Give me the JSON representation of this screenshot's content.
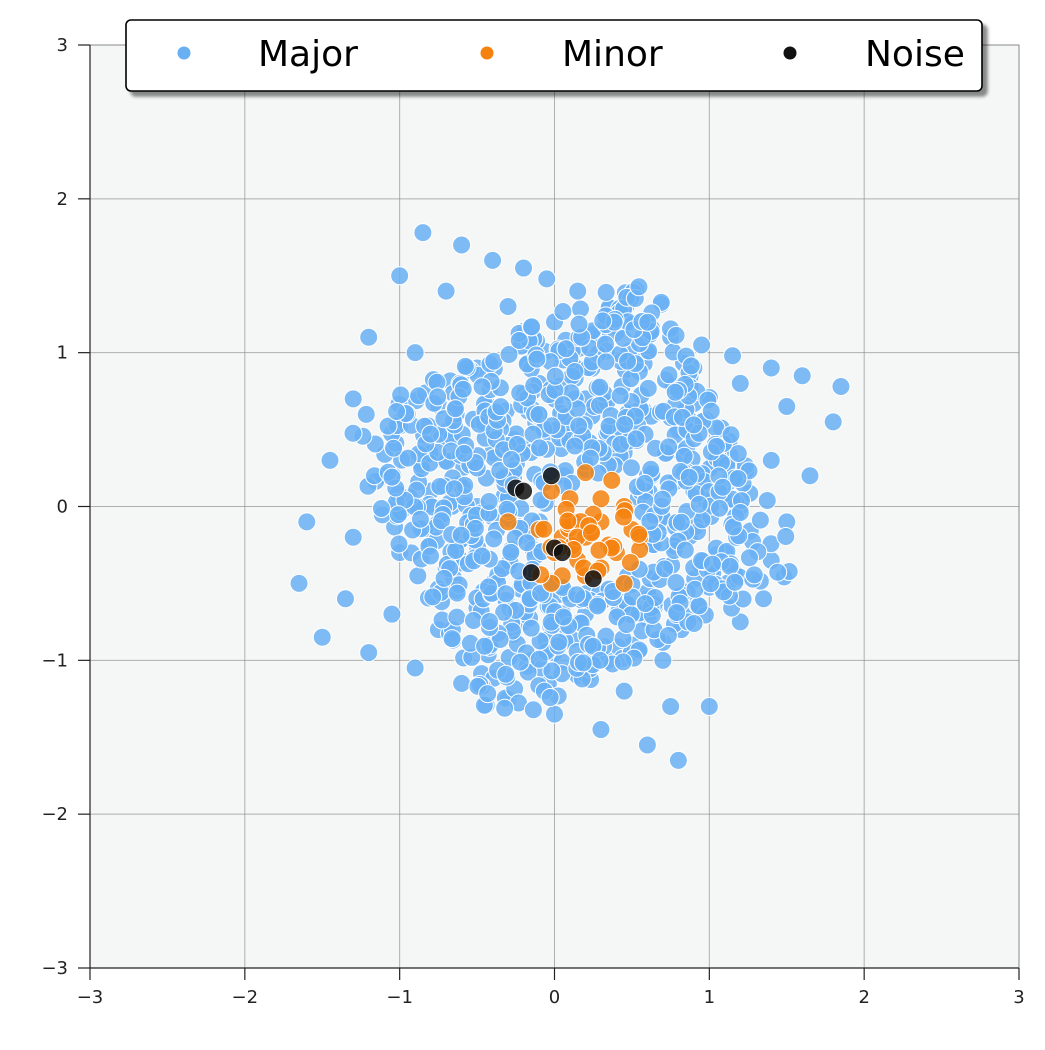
{
  "chart_data": {
    "type": "scatter",
    "title": "",
    "xlabel": "",
    "ylabel": "",
    "xlim": [
      -3,
      3
    ],
    "ylim": [
      -3,
      3
    ],
    "xticks": [
      -3,
      -2,
      -1,
      0,
      1,
      2,
      3
    ],
    "yticks": [
      -3,
      -2,
      -1,
      0,
      1,
      2,
      3
    ],
    "xtick_labels": [
      "−3",
      "−2",
      "−1",
      "0",
      "1",
      "2",
      "3"
    ],
    "ytick_labels": [
      "−3",
      "−2",
      "−1",
      "0",
      "1",
      "2",
      "3"
    ],
    "grid": true,
    "legend_position": "top-center",
    "background": "#f5f7f6",
    "series": [
      {
        "name": "Major",
        "color": "#69b0f3",
        "distribution": "uniform square rotated ~28°, half-width ~1.1 around origin",
        "points": [
          [
            -0.85,
            1.78
          ],
          [
            -0.6,
            1.7
          ],
          [
            -0.4,
            1.6
          ],
          [
            -0.2,
            1.55
          ],
          [
            -0.05,
            1.48
          ],
          [
            0.15,
            1.4
          ],
          [
            0.35,
            1.3
          ],
          [
            0.55,
            1.2
          ],
          [
            0.75,
            1.1
          ],
          [
            0.95,
            1.05
          ],
          [
            1.15,
            0.98
          ],
          [
            1.4,
            0.9
          ],
          [
            1.6,
            0.85
          ],
          [
            1.85,
            0.78
          ],
          [
            -1.0,
            1.5
          ],
          [
            -0.7,
            1.4
          ],
          [
            -0.3,
            1.3
          ],
          [
            0.0,
            1.2
          ],
          [
            0.3,
            1.1
          ],
          [
            0.6,
            1.0
          ],
          [
            0.9,
            0.9
          ],
          [
            1.2,
            0.8
          ],
          [
            1.5,
            0.65
          ],
          [
            1.8,
            0.55
          ],
          [
            -1.2,
            1.1
          ],
          [
            -0.9,
            1.0
          ],
          [
            -0.5,
            0.9
          ],
          [
            -0.1,
            0.8
          ],
          [
            0.2,
            0.7
          ],
          [
            0.5,
            0.6
          ],
          [
            0.8,
            0.5
          ],
          [
            1.1,
            0.4
          ],
          [
            1.4,
            0.3
          ],
          [
            1.65,
            0.2
          ],
          [
            -1.3,
            0.7
          ],
          [
            -1.0,
            0.55
          ],
          [
            -0.7,
            0.45
          ],
          [
            -0.4,
            0.35
          ],
          [
            0.6,
            0.2
          ],
          [
            0.9,
            0.1
          ],
          [
            1.2,
            0.0
          ],
          [
            1.5,
            -0.1
          ],
          [
            -1.45,
            0.3
          ],
          [
            -1.1,
            0.2
          ],
          [
            -0.8,
            0.1
          ],
          [
            -0.5,
            0.0
          ],
          [
            0.8,
            -0.2
          ],
          [
            1.1,
            -0.3
          ],
          [
            1.4,
            -0.35
          ],
          [
            -1.6,
            -0.1
          ],
          [
            -1.3,
            -0.2
          ],
          [
            -1.0,
            -0.3
          ],
          [
            -0.7,
            -0.4
          ],
          [
            -0.4,
            -0.5
          ],
          [
            0.6,
            -0.6
          ],
          [
            0.9,
            -0.7
          ],
          [
            1.2,
            -0.75
          ],
          [
            1.35,
            -0.6
          ],
          [
            -1.65,
            -0.5
          ],
          [
            -1.35,
            -0.6
          ],
          [
            -1.05,
            -0.7
          ],
          [
            -0.75,
            -0.8
          ],
          [
            -0.45,
            -0.9
          ],
          [
            -0.15,
            -1.0
          ],
          [
            0.15,
            -1.1
          ],
          [
            0.45,
            -1.2
          ],
          [
            0.75,
            -1.3
          ],
          [
            1.0,
            -1.3
          ],
          [
            -1.5,
            -0.85
          ],
          [
            -1.2,
            -0.95
          ],
          [
            -0.9,
            -1.05
          ],
          [
            -0.6,
            -1.15
          ],
          [
            -0.3,
            -1.25
          ],
          [
            0.0,
            -1.35
          ],
          [
            0.3,
            -1.45
          ],
          [
            0.6,
            -1.55
          ],
          [
            0.8,
            -1.65
          ],
          [
            -0.1,
            0.6
          ],
          [
            0.1,
            0.45
          ],
          [
            -0.3,
            0.2
          ],
          [
            0.45,
            0.35
          ],
          [
            0.2,
            -0.7
          ],
          [
            -0.2,
            -0.75
          ],
          [
            0.5,
            -0.9
          ],
          [
            -0.6,
            0.75
          ],
          [
            1.0,
            0.7
          ],
          [
            0.7,
            -1.0
          ]
        ]
      },
      {
        "name": "Minor",
        "color": "#f5820f",
        "distribution": "small cluster around (0.25, -0.2)",
        "points": [
          [
            0.2,
            0.22
          ],
          [
            0.37,
            0.17
          ],
          [
            -0.02,
            0.1
          ],
          [
            0.1,
            0.05
          ],
          [
            0.3,
            0.05
          ],
          [
            0.45,
            0.0
          ],
          [
            0.12,
            -0.1
          ],
          [
            0.3,
            -0.1
          ],
          [
            0.5,
            -0.15
          ],
          [
            0.55,
            -0.2
          ],
          [
            -0.3,
            -0.1
          ],
          [
            -0.1,
            -0.15
          ],
          [
            0.05,
            -0.2
          ],
          [
            0.2,
            -0.2
          ],
          [
            0.35,
            -0.25
          ],
          [
            0.0,
            -0.3
          ],
          [
            0.15,
            -0.35
          ],
          [
            0.3,
            -0.4
          ],
          [
            0.55,
            -0.28
          ],
          [
            0.05,
            -0.45
          ],
          [
            0.2,
            -0.45
          ],
          [
            0.45,
            -0.5
          ],
          [
            -0.02,
            -0.5
          ],
          [
            0.4,
            -0.3
          ],
          [
            0.25,
            -0.05
          ]
        ]
      },
      {
        "name": "Noise",
        "color": "#111111",
        "distribution": "scattered near center",
        "points": [
          [
            -0.02,
            0.2
          ],
          [
            -0.25,
            0.12
          ],
          [
            -0.2,
            0.1
          ],
          [
            0.0,
            -0.27
          ],
          [
            0.05,
            -0.3
          ],
          [
            -0.15,
            -0.43
          ],
          [
            0.25,
            -0.47
          ]
        ]
      }
    ]
  }
}
